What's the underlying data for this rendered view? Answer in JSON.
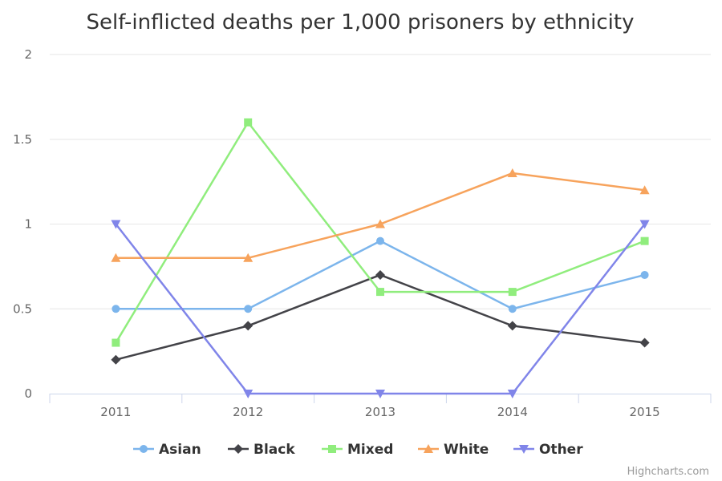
{
  "chart_data": {
    "type": "line",
    "title": "Self-inflicted deaths per 1,000 prisoners by ethnicity",
    "categories": [
      "2011",
      "2012",
      "2013",
      "2014",
      "2015"
    ],
    "ylim": [
      0,
      2
    ],
    "yticks": [
      "0",
      "0.5",
      "1",
      "1.5",
      "2"
    ],
    "ytick_values": [
      0,
      0.5,
      1,
      1.5,
      2
    ],
    "grid": true,
    "legend_position": "bottom",
    "series": [
      {
        "name": "Asian",
        "values": [
          0.5,
          0.5,
          0.9,
          0.5,
          0.7
        ],
        "color": "#7cb5ec",
        "marker": "circle"
      },
      {
        "name": "Black",
        "values": [
          0.2,
          0.4,
          0.7,
          0.4,
          0.3
        ],
        "color": "#434348",
        "marker": "diamond"
      },
      {
        "name": "Mixed",
        "values": [
          0.3,
          1.6,
          0.6,
          0.6,
          0.9
        ],
        "color": "#90ed7d",
        "marker": "square"
      },
      {
        "name": "White",
        "values": [
          0.8,
          0.8,
          1.0,
          1.3,
          1.2
        ],
        "color": "#f7a35c",
        "marker": "triangle"
      },
      {
        "name": "Other",
        "values": [
          1.0,
          0.0,
          0.0,
          0.0,
          1.0
        ],
        "color": "#8085e9",
        "marker": "triangle-down"
      }
    ]
  },
  "credits": "Highcharts.com"
}
